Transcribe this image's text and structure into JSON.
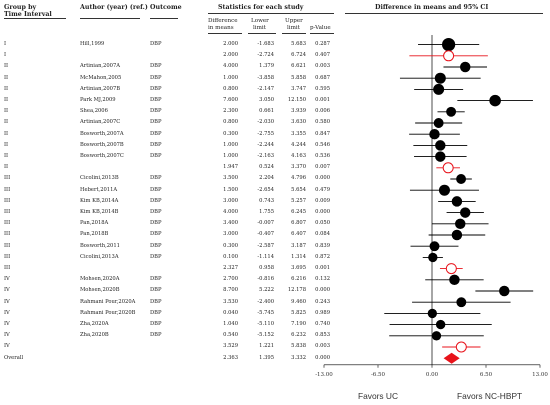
{
  "headers": {
    "group_by": "Group by",
    "time_interval": "Time Interval",
    "author": "Author (year) (ref.)",
    "outcome": "Outcome",
    "stats": "Statistics for each study",
    "diff": "Difference",
    "in_means": "in means",
    "lower": "Lower",
    "lower2": "limit",
    "upper": "Upper",
    "upper2": "limit",
    "pvalue": "p-Value",
    "forest": "Difference in means and 95% CI"
  },
  "footer": {
    "left": "Favors UC",
    "right": "Favors NC-HBPT"
  },
  "colors": {
    "study": "#000000",
    "summary": "#e8131b",
    "overall": "#e8131b",
    "line": "#000000"
  },
  "chart_data": {
    "type": "forest",
    "xlim": [
      -13,
      13
    ],
    "x_ticks": [
      "-13.00",
      "-6.50",
      "0.00",
      "6.50",
      "13.00"
    ],
    "x_tick_values": [
      -13,
      -6.5,
      0,
      6.5,
      13
    ],
    "rows": [
      {
        "group": "I",
        "author": "Hill,1999",
        "outcome": "DBP",
        "diff": "2.000",
        "lower": "-1.683",
        "upper": "5.683",
        "p": "0.287",
        "kind": "study",
        "weight": 1.2
      },
      {
        "group": "I",
        "author": "",
        "outcome": "",
        "diff": "2.000",
        "lower": "-2.724",
        "upper": "6.724",
        "p": "0.407",
        "kind": "summary",
        "weight": 1
      },
      {
        "group": "II",
        "author": "Artinian,2007A",
        "outcome": "DBP",
        "diff": "4.000",
        "lower": "1.379",
        "upper": "6.621",
        "p": "0.003",
        "kind": "study",
        "weight": 0.95
      },
      {
        "group": "II",
        "author": "McMahon,2005",
        "outcome": "DBP",
        "diff": "1.000",
        "lower": "-3.858",
        "upper": "5.858",
        "p": "0.687",
        "kind": "study",
        "weight": 1
      },
      {
        "group": "II",
        "author": "Artinian,2007B",
        "outcome": "DBP",
        "diff": "0.800",
        "lower": "-2.147",
        "upper": "3.747",
        "p": "0.595",
        "kind": "study",
        "weight": 1
      },
      {
        "group": "II",
        "author": "Park MJ,2009",
        "outcome": "DBP",
        "diff": "7.600",
        "lower": "3.050",
        "upper": "12.150",
        "p": "0.001",
        "kind": "study",
        "weight": 1.05
      },
      {
        "group": "II",
        "author": "Shea,2006",
        "outcome": "DBP",
        "diff": "2.300",
        "lower": "0.661",
        "upper": "3.939",
        "p": "0.006",
        "kind": "study",
        "weight": 0.9
      },
      {
        "group": "II",
        "author": "Artinian,2007C",
        "outcome": "DBP",
        "diff": "0.800",
        "lower": "-2.030",
        "upper": "3.630",
        "p": "0.580",
        "kind": "study",
        "weight": 0.9
      },
      {
        "group": "II",
        "author": "Bosworth,2007A",
        "outcome": "DBP",
        "diff": "0.300",
        "lower": "-2.755",
        "upper": "3.355",
        "p": "0.847",
        "kind": "study",
        "weight": 0.95
      },
      {
        "group": "II",
        "author": "Bosworth,2007B",
        "outcome": "DBP",
        "diff": "1.000",
        "lower": "-2.244",
        "upper": "4.244",
        "p": "0.546",
        "kind": "study",
        "weight": 0.95
      },
      {
        "group": "II",
        "author": "Bosworth,2007C",
        "outcome": "DBP",
        "diff": "1.000",
        "lower": "-2.163",
        "upper": "4.163",
        "p": "0.536",
        "kind": "study",
        "weight": 0.95
      },
      {
        "group": "II",
        "author": "",
        "outcome": "",
        "diff": "1.947",
        "lower": "0.524",
        "upper": "3.370",
        "p": "0.007",
        "kind": "summary",
        "weight": 1
      },
      {
        "group": "III",
        "author": "Cicolini,2013B",
        "outcome": "DBP",
        "diff": "3.500",
        "lower": "2.204",
        "upper": "4.796",
        "p": "0.000",
        "kind": "study",
        "weight": 0.9
      },
      {
        "group": "III",
        "author": "Hebert,2011A",
        "outcome": "DBP",
        "diff": "1.500",
        "lower": "-2.654",
        "upper": "5.654",
        "p": "0.479",
        "kind": "study",
        "weight": 1
      },
      {
        "group": "III",
        "author": "Kim KB,2014A",
        "outcome": "DBP",
        "diff": "3.000",
        "lower": "0.743",
        "upper": "5.257",
        "p": "0.009",
        "kind": "study",
        "weight": 0.95
      },
      {
        "group": "III",
        "author": "Kim KB,2014B",
        "outcome": "DBP",
        "diff": "4.000",
        "lower": "1.755",
        "upper": "6.245",
        "p": "0.000",
        "kind": "study",
        "weight": 0.95
      },
      {
        "group": "III",
        "author": "Pan,2018A",
        "outcome": "DBP",
        "diff": "3.400",
        "lower": "-0.007",
        "upper": "6.807",
        "p": "0.050",
        "kind": "study",
        "weight": 0.95
      },
      {
        "group": "III",
        "author": "Pan,2018B",
        "outcome": "DBP",
        "diff": "3.000",
        "lower": "-0.407",
        "upper": "6.407",
        "p": "0.084",
        "kind": "study",
        "weight": 0.95
      },
      {
        "group": "III",
        "author": "Bosworth,2011",
        "outcome": "DBP",
        "diff": "0.300",
        "lower": "-2.587",
        "upper": "3.187",
        "p": "0.839",
        "kind": "study",
        "weight": 0.9
      },
      {
        "group": "III",
        "author": "Cicolini,2013A",
        "outcome": "DBP",
        "diff": "0.100",
        "lower": "-1.114",
        "upper": "1.314",
        "p": "0.872",
        "kind": "study",
        "weight": 0.85
      },
      {
        "group": "III",
        "author": "",
        "outcome": "",
        "diff": "2.327",
        "lower": "0.958",
        "upper": "3.695",
        "p": "0.001",
        "kind": "summary",
        "weight": 1
      },
      {
        "group": "IV",
        "author": "Mohsen,2020A",
        "outcome": "DBP",
        "diff": "2.700",
        "lower": "-0.816",
        "upper": "6.216",
        "p": "0.132",
        "kind": "study",
        "weight": 0.95
      },
      {
        "group": "IV",
        "author": "Mohsen,2020B",
        "outcome": "DBP",
        "diff": "8.700",
        "lower": "5.222",
        "upper": "12.178",
        "p": "0.000",
        "kind": "study",
        "weight": 0.95
      },
      {
        "group": "IV",
        "author": "Rahmani Pour,2020A",
        "outcome": "DBP",
        "diff": "3.530",
        "lower": "-2.400",
        "upper": "9.460",
        "p": "0.243",
        "kind": "study",
        "weight": 0.9
      },
      {
        "group": "IV",
        "author": "Rahmani Pour,2020B",
        "outcome": "DBP",
        "diff": "0.040",
        "lower": "-5.745",
        "upper": "5.825",
        "p": "0.989",
        "kind": "study",
        "weight": 0.85
      },
      {
        "group": "IV",
        "author": "Zha,2020A",
        "outcome": "DBP",
        "diff": "1.040",
        "lower": "-5.110",
        "upper": "7.190",
        "p": "0.740",
        "kind": "study",
        "weight": 0.85
      },
      {
        "group": "IV",
        "author": "Zha,2020B",
        "outcome": "DBP",
        "diff": "0.540",
        "lower": "-5.152",
        "upper": "6.232",
        "p": "0.853",
        "kind": "study",
        "weight": 0.85
      },
      {
        "group": "IV",
        "author": "",
        "outcome": "",
        "diff": "3.529",
        "lower": "1.221",
        "upper": "5.838",
        "p": "0.003",
        "kind": "summary",
        "weight": 1
      },
      {
        "group": "Overall",
        "author": "",
        "outcome": "",
        "diff": "2.363",
        "lower": "1.395",
        "upper": "3.332",
        "p": "0.000",
        "kind": "overall",
        "weight": 1
      }
    ]
  }
}
